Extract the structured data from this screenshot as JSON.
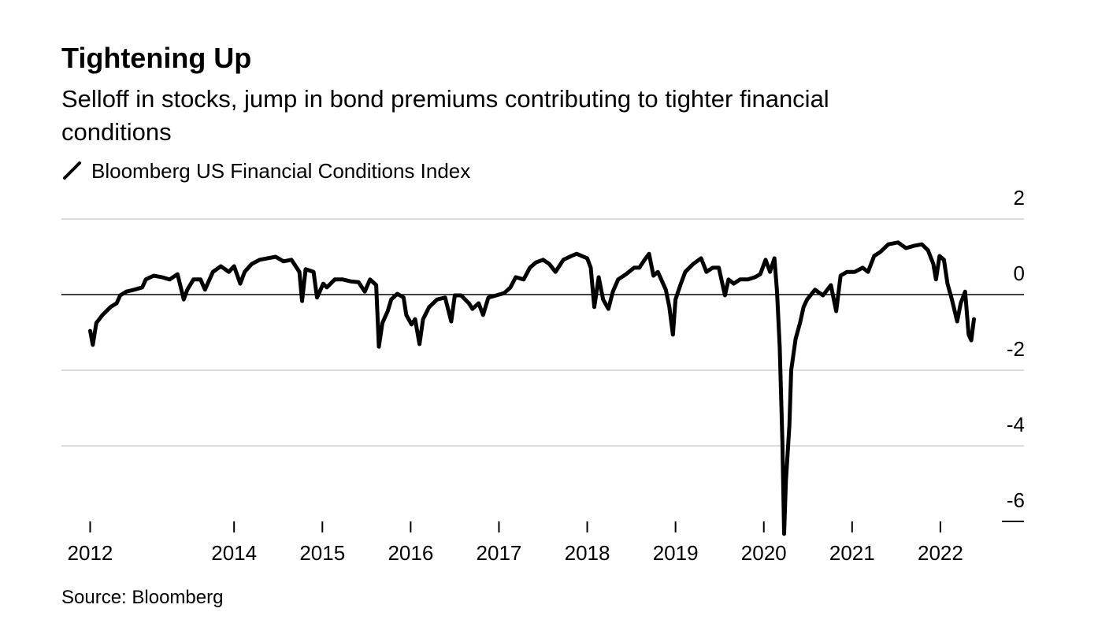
{
  "chart_data": {
    "type": "line",
    "title": "Tightening Up",
    "subtitle": [
      "Selloff in stocks, jump in bond premiums contributing to tighter financial",
      "conditions"
    ],
    "source": "Source: Bloomberg",
    "x": [
      2012.37,
      2012.4,
      2012.44,
      2012.51,
      2012.6,
      2012.67,
      2012.71,
      2012.78,
      2012.87,
      2012.96,
      2013.0,
      2013.09,
      2013.18,
      2013.27,
      2013.36,
      2013.43,
      2013.47,
      2013.54,
      2013.62,
      2013.67,
      2013.76,
      2013.85,
      2013.94,
      2014.0,
      2014.07,
      2014.12,
      2014.2,
      2014.29,
      2014.38,
      2014.47,
      2014.56,
      2014.65,
      2014.74,
      2014.77,
      2014.81,
      2014.9,
      2014.94,
      2015.01,
      2015.05,
      2015.14,
      2015.23,
      2015.32,
      2015.41,
      2015.48,
      2015.54,
      2015.61,
      2015.64,
      2015.68,
      2015.74,
      2015.78,
      2015.85,
      2015.92,
      2015.95,
      2016.01,
      2016.05,
      2016.1,
      2016.14,
      2016.21,
      2016.3,
      2016.39,
      2016.46,
      2016.5,
      2016.57,
      2016.66,
      2016.7,
      2016.77,
      2016.82,
      2016.88,
      2016.97,
      2017.06,
      2017.13,
      2017.19,
      2017.28,
      2017.35,
      2017.42,
      2017.5,
      2017.57,
      2017.64,
      2017.73,
      2017.82,
      2017.88,
      2018.0,
      2018.04,
      2018.08,
      2018.13,
      2018.18,
      2018.24,
      2018.29,
      2018.35,
      2018.44,
      2018.53,
      2018.59,
      2018.65,
      2018.7,
      2018.75,
      2018.8,
      2018.89,
      2018.93,
      2018.97,
      2019.0,
      2019.06,
      2019.11,
      2019.2,
      2019.29,
      2019.35,
      2019.42,
      2019.49,
      2019.56,
      2019.6,
      2019.66,
      2019.73,
      2019.82,
      2019.9,
      2019.96,
      2020.02,
      2020.07,
      2020.12,
      2020.15,
      2020.18,
      2020.21,
      2020.23,
      2020.25,
      2020.29,
      2020.31,
      2020.36,
      2020.41,
      2020.45,
      2020.49,
      2020.58,
      2020.67,
      2020.76,
      2020.82,
      2020.87,
      2020.94,
      2021.03,
      2021.12,
      2021.18,
      2021.25,
      2021.32,
      2021.41,
      2021.52,
      2021.61,
      2021.7,
      2021.79,
      2021.86,
      2021.92,
      2021.95,
      2021.99,
      2022.04,
      2022.08,
      2022.13,
      2022.19,
      2022.23,
      2022.28,
      2022.32,
      2022.35,
      2022.38
    ],
    "series": [
      {
        "name": "Bloomberg US Financial Conditions Index",
        "color": "#000000",
        "values": [
          -0.96,
          -1.33,
          -0.75,
          -0.54,
          -0.33,
          -0.23,
          -0.02,
          0.08,
          0.13,
          0.19,
          0.4,
          0.5,
          0.46,
          0.4,
          0.54,
          -0.13,
          0.13,
          0.4,
          0.4,
          0.13,
          0.6,
          0.75,
          0.6,
          0.75,
          0.29,
          0.6,
          0.81,
          0.92,
          0.96,
          1.0,
          0.88,
          0.92,
          0.6,
          -0.17,
          0.67,
          0.6,
          -0.08,
          0.29,
          0.19,
          0.4,
          0.4,
          0.35,
          0.33,
          0.08,
          0.4,
          0.25,
          -1.38,
          -0.75,
          -0.44,
          -0.13,
          0.02,
          -0.08,
          -0.54,
          -0.79,
          -0.65,
          -1.31,
          -0.65,
          -0.33,
          -0.13,
          -0.08,
          -0.71,
          -0.02,
          -0.02,
          -0.23,
          -0.38,
          -0.23,
          -0.54,
          -0.08,
          -0.02,
          0.04,
          0.19,
          0.46,
          0.4,
          0.71,
          0.85,
          0.92,
          0.81,
          0.6,
          0.92,
          1.02,
          1.08,
          0.96,
          0.71,
          -0.33,
          0.46,
          -0.13,
          -0.38,
          0.08,
          0.4,
          0.54,
          0.71,
          0.71,
          0.92,
          1.08,
          0.5,
          0.6,
          0.13,
          -0.33,
          -1.06,
          -0.13,
          0.29,
          0.6,
          0.81,
          0.96,
          0.6,
          0.71,
          0.71,
          -0.02,
          0.4,
          0.29,
          0.4,
          0.4,
          0.46,
          0.54,
          0.92,
          0.6,
          0.96,
          0.08,
          -1.38,
          -3.88,
          -6.33,
          -4.92,
          -3.46,
          -2.0,
          -1.17,
          -0.75,
          -0.33,
          -0.13,
          0.13,
          -0.02,
          0.25,
          -0.44,
          0.5,
          0.6,
          0.6,
          0.71,
          0.6,
          1.02,
          1.13,
          1.33,
          1.38,
          1.23,
          1.29,
          1.33,
          1.17,
          0.81,
          0.4,
          1.02,
          0.92,
          0.29,
          -0.13,
          -0.71,
          -0.23,
          0.08,
          -1.06,
          -1.21,
          -0.65
        ]
      }
    ],
    "xlim": [
      2012.0,
      2023.0
    ],
    "xticks": [
      {
        "value": 2012.37,
        "label": "2012"
      },
      2014,
      2015,
      2016,
      2017,
      2018,
      2019,
      2020,
      2021,
      2022
    ],
    "ylim": [
      -6,
      2
    ],
    "yticks": [
      -6,
      -4,
      -2,
      0,
      2
    ],
    "grid": true
  }
}
